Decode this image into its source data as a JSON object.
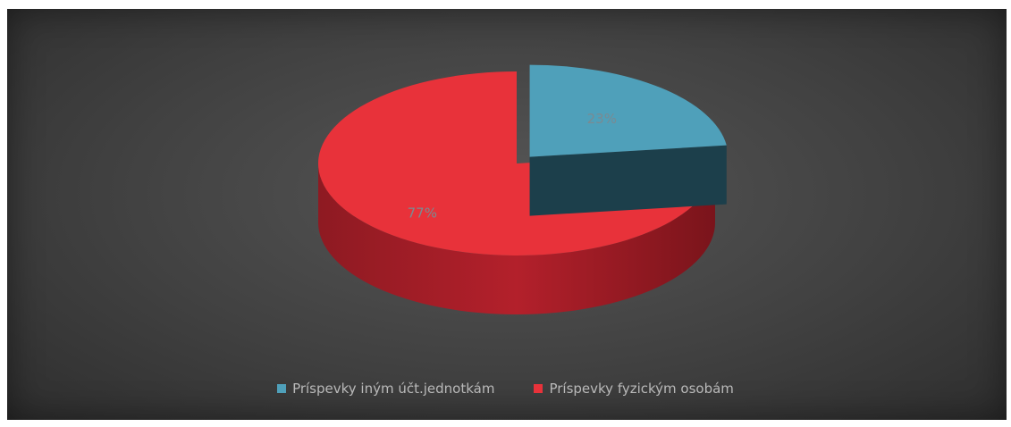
{
  "chart_data": {
    "type": "pie",
    "style": "3d-exploded",
    "categories": [
      "Príspevky iným účt.jednotkám",
      "Príspevky fyzickým osobám"
    ],
    "values": [
      23,
      77
    ],
    "value_labels": [
      "23%",
      "77%"
    ],
    "colors": [
      "#4fa0ba",
      "#e8323a"
    ],
    "background_color": "#434343",
    "legend_position": "bottom"
  }
}
